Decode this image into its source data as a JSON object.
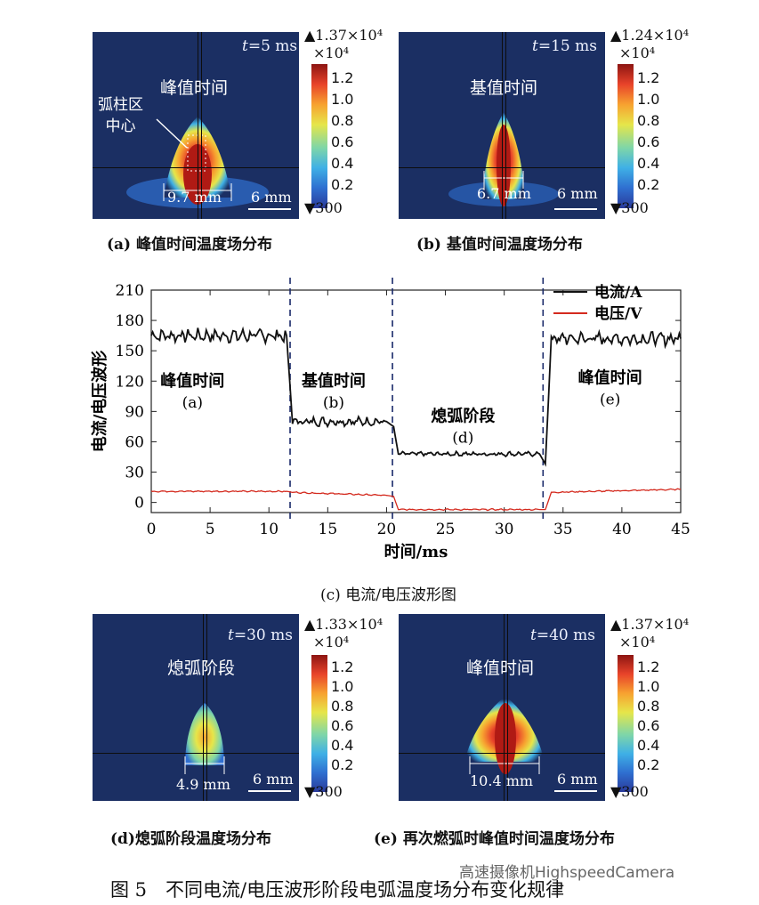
{
  "panels": [
    {
      "time_prefix": "t",
      "time_value": "=5 ms",
      "in_label": "峰值时间",
      "annotation": "弧柱区\n中心",
      "dim": "9.7 mm",
      "scale": "6 mm",
      "cbar_max": "▲1.37×10⁴",
      "cbar_exp": "×10⁴",
      "cbar_min": "▼300",
      "ticks": [
        "1.2",
        "1.0",
        "0.8",
        "0.6",
        "0.4",
        "0.2"
      ],
      "caption": "(a) 峰值时间温度场分布"
    },
    {
      "time_prefix": "t",
      "time_value": "=15 ms",
      "in_label": "基值时间",
      "dim": "6.7 mm",
      "scale": "6 mm",
      "cbar_max": "▲1.24×10⁴",
      "cbar_exp": "×10⁴",
      "cbar_min": "▼300",
      "ticks": [
        "1.2",
        "1.0",
        "0.8",
        "0.6",
        "0.4",
        "0.2"
      ],
      "caption": "(b) 基值时间温度场分布"
    },
    {
      "time_prefix": "t",
      "time_value": "=30 ms",
      "in_label": "熄弧阶段",
      "dim": "4.9 mm",
      "scale": "6 mm",
      "cbar_max": "▲1.33×10⁴",
      "cbar_exp": "×10⁴",
      "cbar_min": "▼300",
      "ticks": [
        "1.2",
        "1.0",
        "0.8",
        "0.6",
        "0.4",
        "0.2"
      ],
      "caption": "(d)熄弧阶段温度场分布"
    },
    {
      "time_prefix": "t",
      "time_value": "=40 ms",
      "in_label": "峰值时间",
      "dim": "10.4 mm",
      "scale": "6 mm",
      "cbar_max": "▲1.37×10⁴",
      "cbar_exp": "×10⁴",
      "cbar_min": "▼300",
      "ticks": [
        "1.2",
        "1.0",
        "0.8",
        "0.6",
        "0.4",
        "0.2"
      ],
      "caption": "(e) 再次燃弧时峰值时间温度场分布"
    }
  ],
  "chart_data": {
    "type": "line",
    "xlabel": "时间/ms",
    "ylabel": "电流/电压波形",
    "xlim": [
      0,
      45
    ],
    "ylim": [
      -10,
      210
    ],
    "xticks": [
      0,
      5,
      10,
      15,
      20,
      25,
      30,
      35,
      40,
      45
    ],
    "yticks": [
      0,
      30,
      60,
      90,
      120,
      150,
      180,
      210
    ],
    "legend_position": "top-right",
    "series": [
      {
        "name": "电流/A",
        "color": "#111111",
        "x": [
          0,
          11.5,
          12,
          20,
          20.6,
          21,
          33,
          33.5,
          34,
          45
        ],
        "y": [
          165,
          165,
          80,
          80,
          75,
          48,
          48,
          38,
          162,
          162
        ]
      },
      {
        "name": "电压/V",
        "color": "#d42a1e",
        "x": [
          0,
          11.5,
          12,
          20,
          20.6,
          21,
          33,
          33.5,
          34,
          45
        ],
        "y": [
          11,
          11,
          10,
          7,
          6,
          -7,
          -7,
          -7,
          10,
          13
        ]
      }
    ],
    "dividers": [
      11.8,
      20.5,
      33.3
    ],
    "annotations": [
      {
        "text": "峰值时间",
        "sub": "(a)",
        "x": 3.5,
        "y": 115
      },
      {
        "text": "基值时间",
        "sub": "(b)",
        "x": 15.5,
        "y": 115
      },
      {
        "text": "熄弧阶段",
        "sub": "(d)",
        "x": 26.5,
        "y": 80
      },
      {
        "text": "峰值时间",
        "sub": "(e)",
        "x": 39,
        "y": 118
      }
    ],
    "caption": "(c) 电流/电压波形图"
  },
  "figure_caption": "图 5　不同电流/电压波形阶段电弧温度场分布变化规律",
  "watermark": "高速摄像机HighspeedCamera"
}
